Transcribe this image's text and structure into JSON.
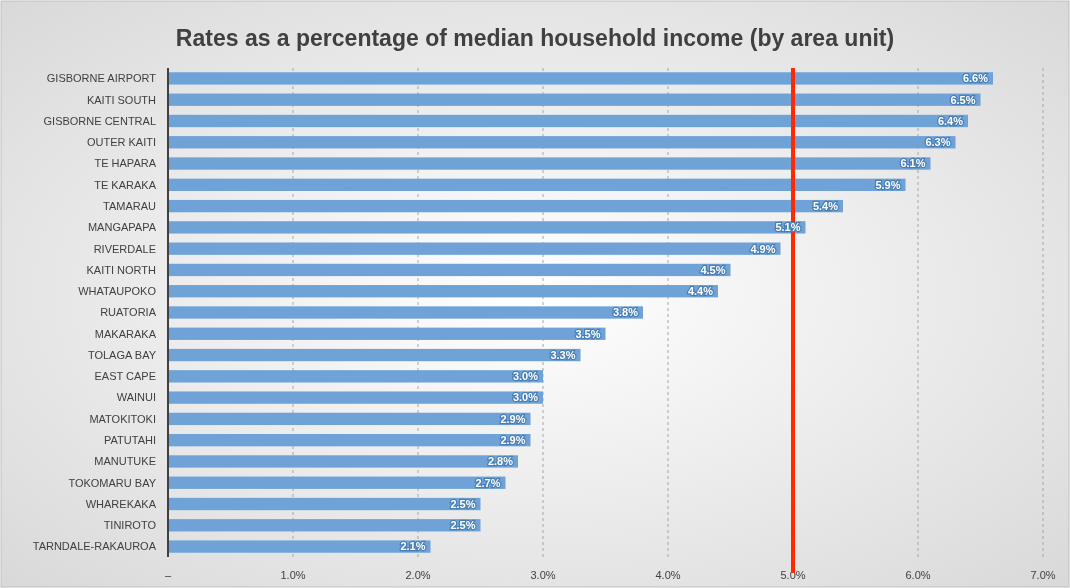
{
  "chart_data": {
    "type": "bar",
    "orientation": "horizontal",
    "title": "Rates as a percentage of median household income (by area unit)",
    "categories": [
      "GISBORNE AIRPORT",
      "KAITI SOUTH",
      "GISBORNE CENTRAL",
      "OUTER KAITI",
      "TE HAPARA",
      "TE KARAKA",
      "TAMARAU",
      "MANGAPAPA",
      "RIVERDALE",
      "KAITI NORTH",
      "WHATAUPOKO",
      "RUATORIA",
      "MAKARAKA",
      "TOLAGA BAY",
      "EAST CAPE",
      "WAINUI",
      "MATOKITOKI",
      "PATUTAHI",
      "MANUTUKE",
      "TOKOMARU BAY",
      "WHAREKAKA",
      "TINIROTO",
      "TARNDALE-RAKAUROA"
    ],
    "values": [
      6.6,
      6.5,
      6.4,
      6.3,
      6.1,
      5.9,
      5.4,
      5.1,
      4.9,
      4.5,
      4.4,
      3.8,
      3.5,
      3.3,
      3.0,
      3.0,
      2.9,
      2.9,
      2.8,
      2.7,
      2.5,
      2.5,
      2.1
    ],
    "value_labels": [
      "6.6%",
      "6.5%",
      "6.4%",
      "6.3%",
      "6.1%",
      "5.9%",
      "5.4%",
      "5.1%",
      "4.9%",
      "4.5%",
      "4.4%",
      "3.8%",
      "3.5%",
      "3.3%",
      "3.0%",
      "3.0%",
      "2.9%",
      "2.9%",
      "2.8%",
      "2.7%",
      "2.5%",
      "2.5%",
      "2.1%"
    ],
    "color": "#6fa3d8",
    "xlim": [
      0,
      7
    ],
    "xticks": [
      {
        "value": 0,
        "label": "–"
      },
      {
        "value": 1,
        "label": "1.0%"
      },
      {
        "value": 2,
        "label": "2.0%"
      },
      {
        "value": 3,
        "label": "3.0%"
      },
      {
        "value": 4,
        "label": "4.0%"
      },
      {
        "value": 5,
        "label": "5.0%"
      },
      {
        "value": 6,
        "label": "6.0%"
      },
      {
        "value": 7,
        "label": "7.0%"
      }
    ],
    "grid": "x",
    "ref_lines": [
      {
        "axis": "x",
        "value": 5,
        "color": "#ff2a00"
      }
    ]
  }
}
